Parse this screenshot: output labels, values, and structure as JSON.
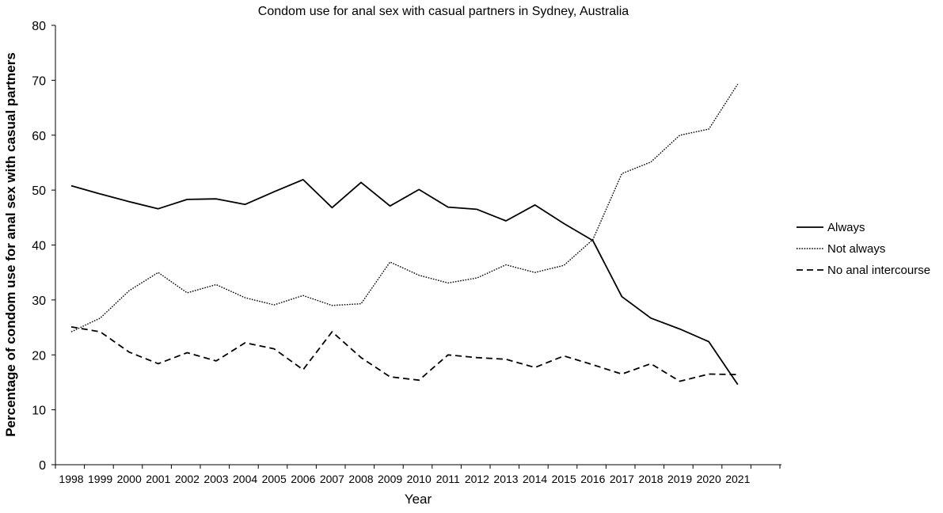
{
  "chart_data": {
    "type": "line",
    "title": "Condom use for anal sex with casual partners in Sydney, Australia",
    "xlabel": "Year",
    "ylabel": "Percentage of condom use for anal sex with casual partners",
    "ylim": [
      0,
      80
    ],
    "yticks": [
      0,
      10,
      20,
      30,
      40,
      50,
      60,
      70,
      80
    ],
    "categories": [
      "1998",
      "1999",
      "2000",
      "2001",
      "2002",
      "2003",
      "2004",
      "2005",
      "2006",
      "2007",
      "2008",
      "2009",
      "2010",
      "2011",
      "2012",
      "2013",
      "2014",
      "2015",
      "2016",
      "2017",
      "2018",
      "2019",
      "2020",
      "2021"
    ],
    "grid": false,
    "legend_position": "right",
    "series": [
      {
        "name": "Always",
        "style": "solid",
        "color": "#000000",
        "values": [
          50.8,
          49.3,
          47.9,
          46.6,
          48.3,
          48.4,
          47.4,
          49.7,
          51.9,
          46.8,
          51.4,
          47.1,
          50.1,
          46.9,
          46.5,
          44.4,
          47.3,
          43.9,
          40.8,
          30.6,
          26.7,
          24.7,
          22.4,
          14.6
        ]
      },
      {
        "name": "Not always",
        "style": "dotted",
        "color": "#000000",
        "values": [
          24.2,
          26.7,
          31.7,
          35.0,
          31.3,
          32.8,
          30.4,
          29.1,
          30.8,
          29.0,
          29.3,
          36.9,
          34.5,
          33.1,
          34.0,
          36.4,
          35.0,
          36.3,
          41.0,
          53.0,
          55.1,
          60.0,
          61.1,
          69.3
        ]
      },
      {
        "name": "No anal intercourse",
        "style": "dashed",
        "color": "#000000",
        "values": [
          25.1,
          24.2,
          20.5,
          18.4,
          20.4,
          18.9,
          22.2,
          21.1,
          17.3,
          24.2,
          19.5,
          16.0,
          15.4,
          20.0,
          19.5,
          19.2,
          17.7,
          19.8,
          18.2,
          16.5,
          18.4,
          15.2,
          16.5,
          16.4
        ]
      }
    ]
  }
}
